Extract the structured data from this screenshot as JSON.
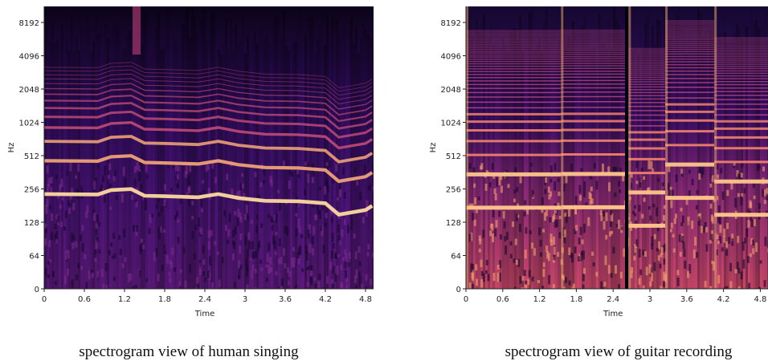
{
  "panels": [
    {
      "y_label": "Hz",
      "x_label": "Time",
      "y_ticks": [
        0,
        64,
        128,
        256,
        512,
        1024,
        2048,
        4096,
        8192
      ],
      "x_ticks": [
        0,
        0.6,
        1.2,
        1.8,
        2.4,
        3,
        3.6,
        4.2,
        4.8
      ],
      "caption": "spectrogram view of human singing"
    },
    {
      "y_label": "Hz",
      "x_label": "Time",
      "y_ticks": [
        0,
        64,
        128,
        256,
        512,
        1024,
        2048,
        4096,
        8192
      ],
      "x_ticks": [
        0,
        0.6,
        1.2,
        1.8,
        2.4,
        3,
        3.6,
        4.2,
        4.8
      ],
      "caption": "spectrogram view of guitar recording"
    }
  ]
}
